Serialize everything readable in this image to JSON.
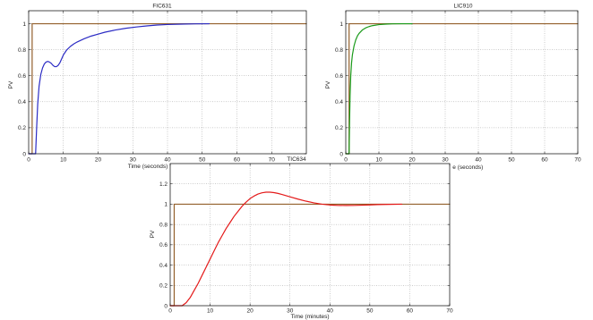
{
  "chart_data": [
    {
      "type": "line",
      "title": "FIC631",
      "xlabel": "Time (seconds)",
      "ylabel": "PV",
      "xlim": [
        0,
        80
      ],
      "ylim": [
        0,
        1.1
      ],
      "xticks": [
        0,
        10,
        20,
        30,
        40,
        50,
        60,
        70
      ],
      "yticks": [
        0,
        0.2,
        0.4,
        0.6,
        0.8,
        1
      ],
      "grid": true,
      "series": [
        {
          "color": "#93602c",
          "x": [
            0,
            1,
            1,
            80
          ],
          "y": [
            0,
            0,
            1,
            1
          ]
        },
        {
          "color": "#2b2bc4",
          "x": [
            0,
            2,
            2.3,
            2.6,
            3,
            3.5,
            4,
            4.5,
            5,
            5.5,
            6,
            6.5,
            7,
            7.5,
            8,
            8.5,
            9,
            9.5,
            10,
            11,
            12,
            13,
            14,
            16,
            18,
            20,
            22,
            25,
            28,
            31,
            34,
            37,
            40,
            44,
            48,
            52
          ],
          "y": [
            0,
            0,
            0.2,
            0.38,
            0.52,
            0.61,
            0.66,
            0.69,
            0.705,
            0.71,
            0.705,
            0.695,
            0.68,
            0.67,
            0.67,
            0.68,
            0.7,
            0.73,
            0.76,
            0.8,
            0.825,
            0.845,
            0.86,
            0.885,
            0.905,
            0.92,
            0.935,
            0.952,
            0.965,
            0.975,
            0.983,
            0.99,
            0.994,
            0.997,
            0.999,
            1
          ]
        }
      ]
    },
    {
      "type": "line",
      "title": "LIC910",
      "xlabel": "Time (seconds)",
      "ylabel": "PV",
      "xlim": [
        0,
        70
      ],
      "ylim": [
        0,
        1.1
      ],
      "xticks": [
        0,
        10,
        20,
        30,
        40,
        50,
        60,
        70
      ],
      "yticks": [
        0,
        0.2,
        0.4,
        0.6,
        0.8,
        1
      ],
      "grid": true,
      "series": [
        {
          "color": "#93602c",
          "x": [
            0,
            1,
            1,
            70
          ],
          "y": [
            0,
            0,
            1,
            1
          ]
        },
        {
          "color": "#1a9a1a",
          "x": [
            0,
            1,
            1.15,
            1.3,
            1.5,
            1.75,
            2,
            2.5,
            3,
            3.5,
            4,
            5,
            6,
            7,
            8,
            10,
            12,
            14,
            17,
            20
          ],
          "y": [
            0,
            0,
            0.25,
            0.45,
            0.6,
            0.7,
            0.76,
            0.83,
            0.875,
            0.905,
            0.925,
            0.952,
            0.968,
            0.978,
            0.985,
            0.993,
            0.997,
            0.999,
            1,
            1
          ]
        }
      ]
    },
    {
      "type": "line",
      "title": "TIC634",
      "xlabel": "Time (minutes)",
      "ylabel": "PV",
      "xlim": [
        0,
        70
      ],
      "ylim": [
        0,
        1.4
      ],
      "xticks": [
        0,
        10,
        20,
        30,
        40,
        50,
        60,
        70
      ],
      "yticks": [
        0,
        0.2,
        0.4,
        0.6,
        0.8,
        1,
        1.2
      ],
      "grid": true,
      "series": [
        {
          "color": "#93602c",
          "x": [
            0,
            1,
            1,
            70
          ],
          "y": [
            0,
            0,
            1,
            1
          ]
        },
        {
          "color": "#e41a1a",
          "x": [
            0,
            3,
            4,
            5,
            6,
            7,
            8,
            9,
            10,
            11,
            12,
            13,
            14,
            15,
            16,
            17,
            18,
            19,
            20,
            21,
            22,
            23,
            24,
            25,
            26,
            27,
            28,
            30,
            32,
            34,
            36,
            38,
            40,
            42,
            44,
            46,
            48,
            50,
            52,
            55,
            58
          ],
          "y": [
            0,
            0,
            0.03,
            0.08,
            0.15,
            0.22,
            0.3,
            0.38,
            0.46,
            0.54,
            0.62,
            0.69,
            0.76,
            0.82,
            0.88,
            0.93,
            0.98,
            1.02,
            1.055,
            1.08,
            1.1,
            1.112,
            1.118,
            1.118,
            1.114,
            1.106,
            1.096,
            1.073,
            1.05,
            1.03,
            1.013,
            1.0,
            0.992,
            0.988,
            0.987,
            0.988,
            0.99,
            0.993,
            0.996,
            0.998,
            1.0
          ]
        }
      ]
    }
  ]
}
